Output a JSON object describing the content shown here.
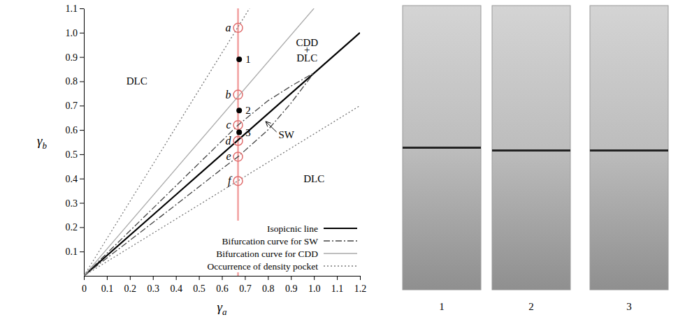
{
  "chart_data": {
    "type": "line",
    "x_label": "γa",
    "y_label": "γb",
    "xlim": [
      0,
      1.2
    ],
    "ylim": [
      0,
      1.1
    ],
    "xticks": [
      0,
      0.1,
      0.2,
      0.3,
      0.4,
      0.5,
      0.6,
      0.7,
      0.8,
      0.9,
      {
        "value": 1,
        "label": "1.0"
      },
      1.1,
      1.2
    ],
    "yticks": [
      0.1,
      0.2,
      0.3,
      0.4,
      0.5,
      0.6,
      0.7,
      0.8,
      0.9,
      {
        "value": 1,
        "label": "1.0"
      },
      1.1
    ],
    "legend": "bottom-right",
    "series": [
      {
        "name": "Isopicnic line",
        "color": "#000000",
        "line_style": "solid",
        "x": [
          0,
          1.2
        ],
        "values": [
          0,
          1.0
        ]
      },
      {
        "name": "Bifurcation curve for SW",
        "color": "#444444",
        "line_style": "dash-dot",
        "x": [
          0,
          0.2,
          0.4,
          0.6,
          0.67,
          0.8,
          0.9,
          1.0,
          null,
          0,
          0.2,
          0.4,
          0.6,
          0.67,
          0.8,
          0.9,
          1.0
        ],
        "values": [
          0,
          0.185,
          0.37,
          0.555,
          0.62,
          0.72,
          0.78,
          0.835,
          null,
          0,
          0.146,
          0.292,
          0.44,
          0.49,
          0.6,
          0.71,
          0.835
        ]
      },
      {
        "name": "Bifurcation curve for CDD",
        "color": "#aaaaaa",
        "line_style": "solid",
        "x": [
          0,
          1.0
        ],
        "values": [
          0,
          1.1
        ]
      },
      {
        "name": "Occurrence of density pocket",
        "color": "#777777",
        "line_style": "dotted",
        "x": [
          0,
          0.72,
          null,
          0,
          1.2
        ],
        "values": [
          0,
          1.1,
          null,
          0,
          0.7
        ]
      }
    ],
    "reference_line": {
      "x": 0.67,
      "color": "#f2a0a0"
    },
    "points": [
      {
        "label": "a",
        "x": 0.67,
        "y": 1.02
      },
      {
        "label": "b",
        "x": 0.67,
        "y": 0.745
      },
      {
        "label": "c",
        "x": 0.67,
        "y": 0.62
      },
      {
        "label": "d",
        "x": 0.67,
        "y": 0.555
      },
      {
        "label": "e",
        "x": 0.67,
        "y": 0.49
      },
      {
        "label": "f",
        "x": 0.67,
        "y": 0.39
      }
    ],
    "points_color": "#e07070",
    "experiments": [
      {
        "label": "1",
        "x": 0.675,
        "y": 0.89
      },
      {
        "label": "2",
        "x": 0.675,
        "y": 0.68
      },
      {
        "label": "3",
        "x": 0.675,
        "y": 0.59
      }
    ],
    "experiments_color": "#000000",
    "annotations": [
      {
        "text": "DLC",
        "x": 0.23,
        "y": 0.8
      },
      {
        "text": "DLC",
        "x": 1.0,
        "y": 0.4
      },
      {
        "text": "CDD",
        "x": 0.97,
        "y": 0.96
      },
      {
        "text": "+",
        "x": 0.97,
        "y": 0.93
      },
      {
        "text": "DLC",
        "x": 0.97,
        "y": 0.895
      },
      {
        "text": "SW",
        "x": 0.88,
        "y": 0.58,
        "arrow_to": [
          0.79,
          0.635
        ]
      }
    ]
  },
  "photos": [
    {
      "label": "1"
    },
    {
      "label": "2"
    },
    {
      "label": "3"
    }
  ]
}
